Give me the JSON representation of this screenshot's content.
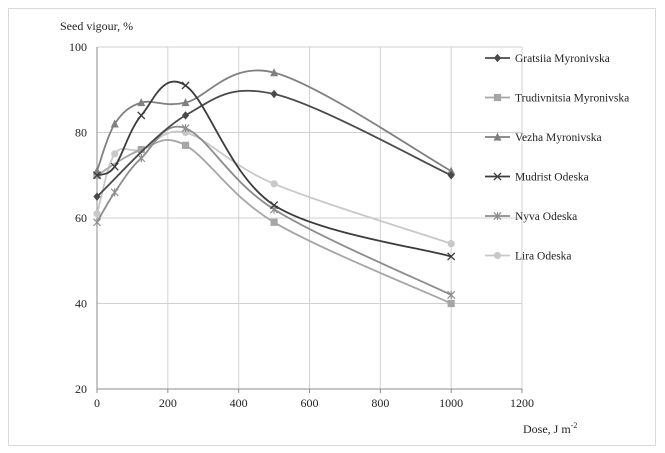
{
  "chart_data": {
    "type": "line",
    "ylabel": "Seed vigour, %",
    "xlabel_base": "Dose, J m",
    "xlabel_sup": "-2",
    "xlim": [
      0,
      1200
    ],
    "ylim": [
      20,
      100
    ],
    "xticks": [
      0,
      200,
      400,
      600,
      800,
      1000,
      1200
    ],
    "yticks": [
      20,
      40,
      60,
      80,
      100
    ],
    "grid": true,
    "legend_position": "right",
    "series": [
      {
        "name": "Gratsiia Myronivska",
        "marker": "diamond",
        "color": "#4a4a4a",
        "x": [
          0,
          250,
          500,
          1000
        ],
        "y": [
          65,
          84,
          89,
          70
        ]
      },
      {
        "name": "Trudivnitsia Myronivska",
        "marker": "square",
        "color": "#a6a6a6",
        "x": [
          0,
          125,
          250,
          500,
          1000
        ],
        "y": [
          70,
          76,
          77,
          59,
          40
        ]
      },
      {
        "name": "Vezha Myronivska",
        "marker": "triangle",
        "color": "#808080",
        "x": [
          0,
          50,
          125,
          250,
          500,
          1000
        ],
        "y": [
          71,
          82,
          87,
          87,
          94,
          71
        ]
      },
      {
        "name": "Mudrist Odeska",
        "marker": "x",
        "color": "#3c3c3c",
        "x": [
          0,
          50,
          125,
          250,
          500,
          1000
        ],
        "y": [
          70,
          72,
          84,
          91,
          63,
          51
        ]
      },
      {
        "name": "Nyva  Odeska",
        "marker": "star",
        "color": "#8c8c8c",
        "x": [
          0,
          50,
          125,
          250,
          500,
          1000
        ],
        "y": [
          59,
          66,
          74,
          81,
          62,
          42
        ]
      },
      {
        "name": "Lira Odeska",
        "marker": "circle",
        "color": "#c8c8c8",
        "x": [
          0,
          50,
          125,
          250,
          500,
          1000
        ],
        "y": [
          61,
          75,
          76,
          80,
          68,
          54
        ]
      }
    ]
  }
}
